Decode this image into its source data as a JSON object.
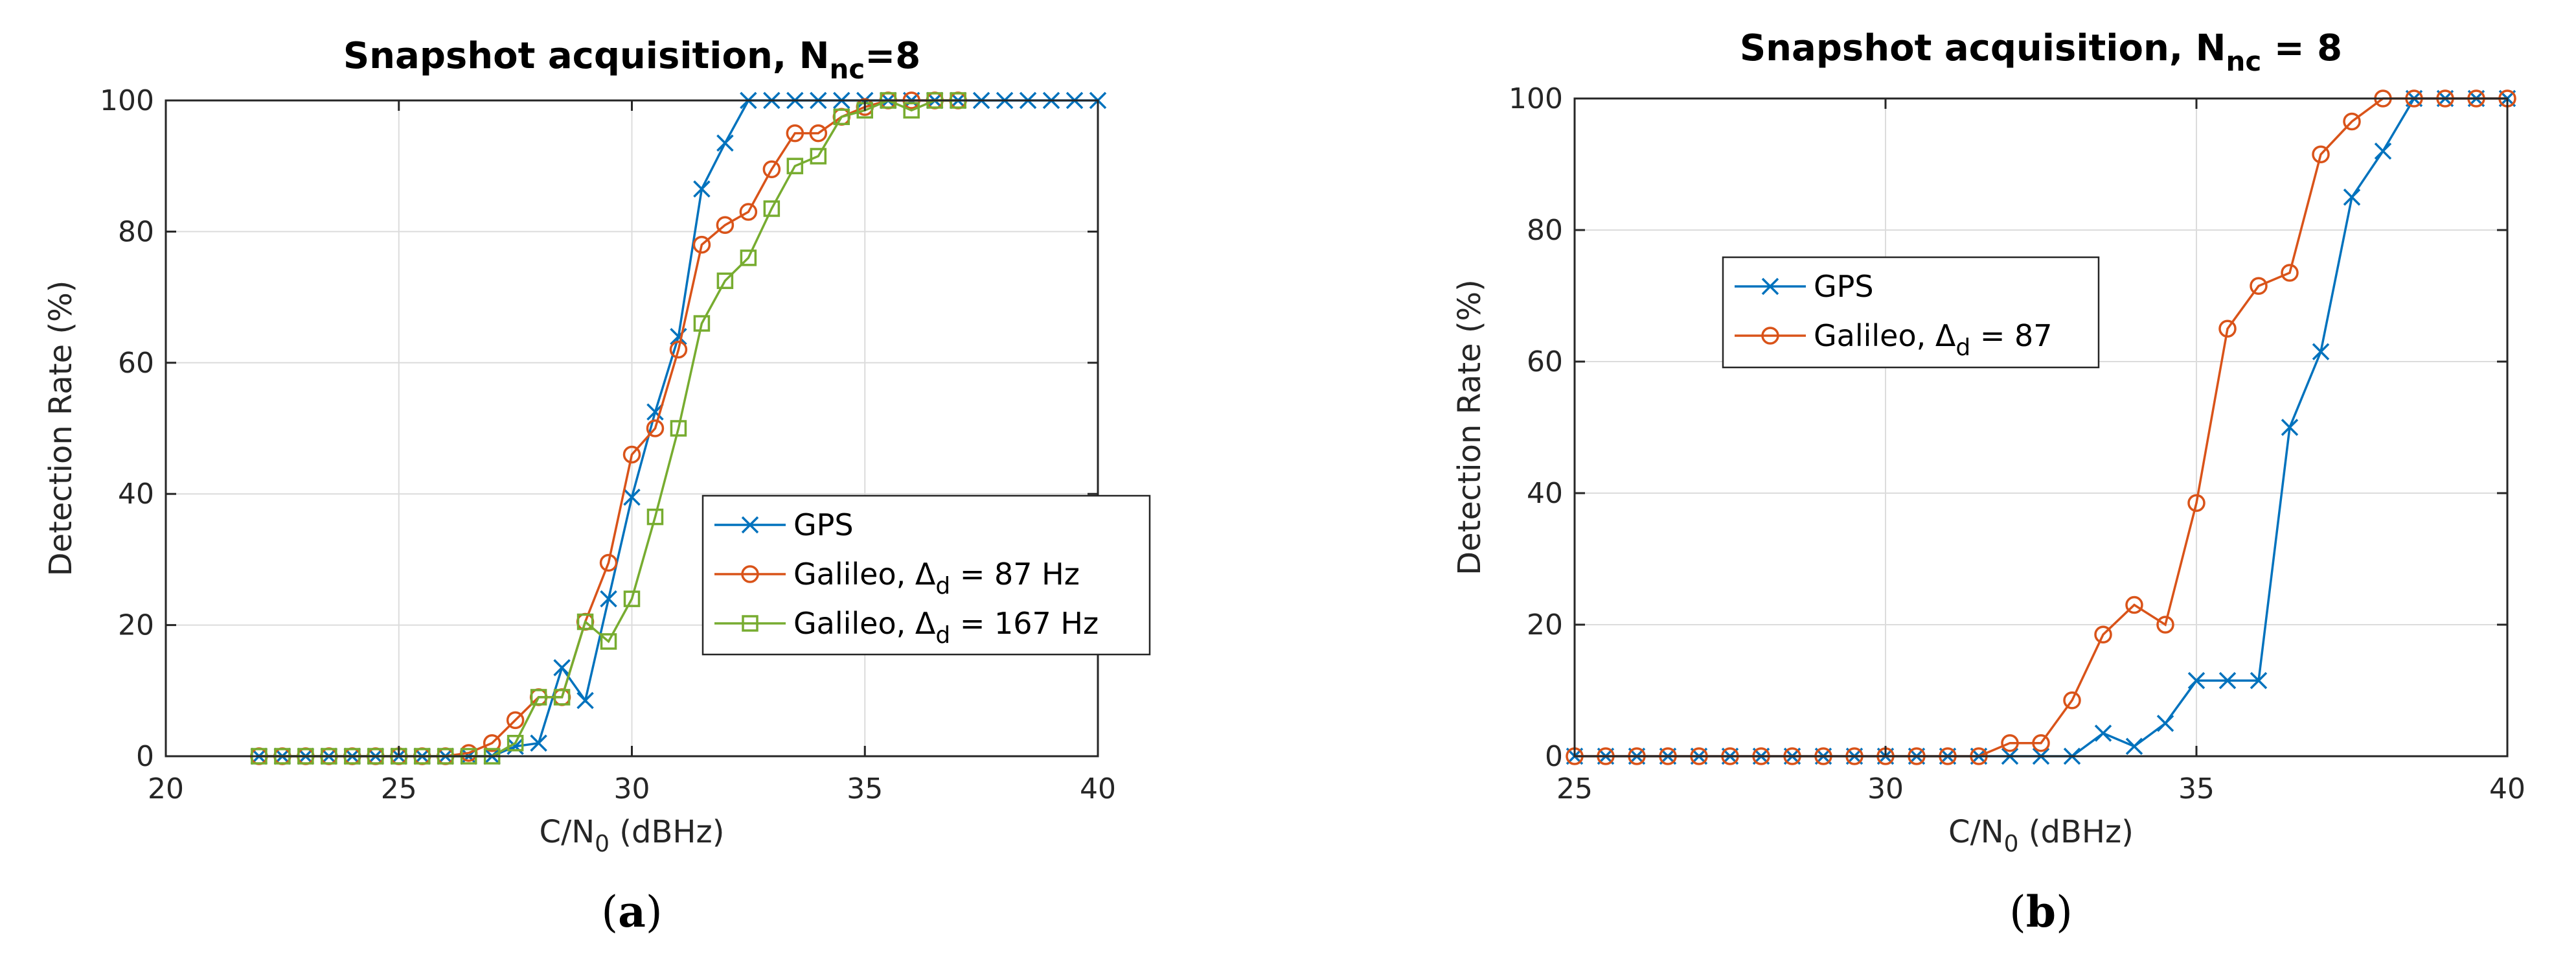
{
  "chart_data": [
    {
      "type": "line",
      "title": "Snapshot acquisition, N",
      "title_sub": "nc",
      "title_tail": "=8",
      "xlabel": "C/N",
      "xlabel_sub": "0",
      "xlabel_tail": " (dBHz)",
      "ylabel": "Detection Rate (%)",
      "xlim": [
        20,
        40
      ],
      "ylim": [
        0,
        100
      ],
      "xticks": [
        "20",
        "25",
        "30",
        "35",
        "40"
      ],
      "yticks": [
        "0",
        "20",
        "40",
        "60",
        "80",
        "100"
      ],
      "grid": true,
      "legend_position": "center-right",
      "caption": {
        "open": "(",
        "letter": "a",
        "close": ")"
      },
      "series": [
        {
          "name": "GPS",
          "name_sub": "",
          "name_tail": "",
          "color": "#0072BD",
          "marker": "x",
          "x": [
            22,
            22.5,
            23,
            23.5,
            24,
            24.5,
            25,
            25.5,
            26,
            26.5,
            27,
            27.5,
            28,
            28.5,
            29,
            29.5,
            30,
            30.5,
            31,
            31.5,
            32,
            32.5,
            33,
            33.5,
            34,
            34.5,
            35,
            35.5,
            36,
            36.5,
            37,
            37.5,
            38,
            38.5,
            39,
            39.5,
            40
          ],
          "y": [
            0,
            0,
            0,
            0,
            0,
            0,
            0,
            0,
            0,
            0,
            0,
            1.5,
            2,
            13.5,
            8.5,
            24,
            39.5,
            52.5,
            64,
            86.5,
            93.5,
            100,
            100,
            100,
            100,
            100,
            100,
            100,
            100,
            100,
            100,
            100,
            100,
            100,
            100,
            100,
            100
          ]
        },
        {
          "name": "Galileo, Δ",
          "name_sub": "d",
          "name_tail": " = 87 Hz",
          "color": "#D95319",
          "marker": "o",
          "x": [
            22,
            22.5,
            23,
            23.5,
            24,
            24.5,
            25,
            25.5,
            26,
            26.5,
            27,
            27.5,
            28,
            28.5,
            29,
            29.5,
            30,
            30.5,
            31,
            31.5,
            32,
            32.5,
            33,
            33.5,
            34,
            34.5,
            35,
            35.5,
            36,
            36.5,
            37
          ],
          "y": [
            0,
            0,
            0,
            0,
            0,
            0,
            0,
            0,
            0,
            0.5,
            2,
            5.5,
            9,
            9,
            20.5,
            29.5,
            46,
            50,
            62,
            78,
            81,
            83,
            89.5,
            95,
            95,
            97.5,
            99,
            100,
            100,
            100,
            100
          ]
        },
        {
          "name": "Galileo, Δ",
          "name_sub": "d",
          "name_tail": " = 167 Hz",
          "color": "#77AC30",
          "marker": "s",
          "x": [
            22,
            22.5,
            23,
            23.5,
            24,
            24.5,
            25,
            25.5,
            26,
            26.5,
            27,
            27.5,
            28,
            28.5,
            29,
            29.5,
            30,
            30.5,
            31,
            31.5,
            32,
            32.5,
            33,
            33.5,
            34,
            34.5,
            35,
            35.5,
            36,
            36.5,
            37
          ],
          "y": [
            0,
            0,
            0,
            0,
            0,
            0,
            0,
            0,
            0,
            0,
            0,
            2,
            9,
            9,
            20.5,
            17.5,
            24,
            36.5,
            50,
            66,
            72.5,
            76,
            83.5,
            90,
            91.5,
            97.5,
            98.5,
            100,
            98.5,
            100,
            100
          ]
        }
      ]
    },
    {
      "type": "line",
      "title": "Snapshot acquisition, N",
      "title_sub": "nc",
      "title_tail": " = 8",
      "xlabel": "C/N",
      "xlabel_sub": "0",
      "xlabel_tail": " (dBHz)",
      "ylabel": "Detection Rate (%)",
      "xlim": [
        25,
        40
      ],
      "ylim": [
        0,
        100
      ],
      "xticks": [
        "25",
        "30",
        "35",
        "40"
      ],
      "yticks": [
        "0",
        "20",
        "40",
        "60",
        "80",
        "100"
      ],
      "grid": true,
      "legend_position": "upper-left",
      "caption": {
        "open": "(",
        "letter": "b",
        "close": ")"
      },
      "series": [
        {
          "name": "GPS",
          "name_sub": "",
          "name_tail": "",
          "color": "#0072BD",
          "marker": "x",
          "x": [
            25,
            25.5,
            26,
            26.5,
            27,
            27.5,
            28,
            28.5,
            29,
            29.5,
            30,
            30.5,
            31,
            31.5,
            32,
            32.5,
            33,
            33.5,
            34,
            34.5,
            35,
            35.5,
            36,
            36.5,
            37,
            37.5,
            38,
            38.5,
            39,
            39.5,
            40
          ],
          "y": [
            0,
            0,
            0,
            0,
            0,
            0,
            0,
            0,
            0,
            0,
            0,
            0,
            0,
            0,
            0,
            0,
            0,
            3.5,
            1.5,
            5,
            11.5,
            11.5,
            11.5,
            50,
            61.5,
            85,
            92,
            100,
            100,
            100,
            100
          ]
        },
        {
          "name": "Galileo, Δ",
          "name_sub": "d",
          "name_tail": " = 87",
          "color": "#D95319",
          "marker": "o",
          "x": [
            25,
            25.5,
            26,
            26.5,
            27,
            27.5,
            28,
            28.5,
            29,
            29.5,
            30,
            30.5,
            31,
            31.5,
            32,
            32.5,
            33,
            33.5,
            34,
            34.5,
            35,
            35.5,
            36,
            36.5,
            37,
            37.5,
            38,
            38.5,
            39,
            39.5,
            40
          ],
          "y": [
            0,
            0,
            0,
            0,
            0,
            0,
            0,
            0,
            0,
            0,
            0,
            0,
            0,
            0,
            2,
            2,
            8.5,
            18.5,
            23,
            20,
            38.5,
            65,
            71.5,
            73.5,
            91.5,
            96.5,
            100,
            100,
            100,
            100,
            100
          ]
        }
      ]
    }
  ]
}
